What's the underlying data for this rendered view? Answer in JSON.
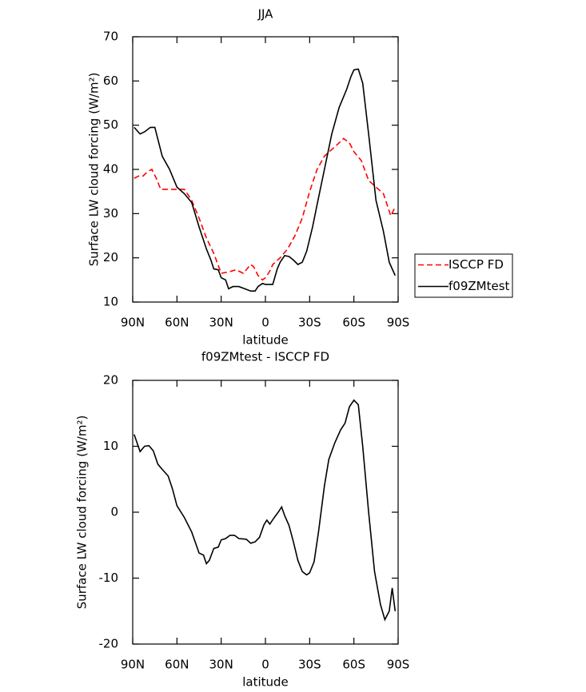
{
  "chart_data": [
    {
      "type": "line",
      "title": "JJA",
      "xlabel": "latitude",
      "ylabel": "Surface LW cloud forcing (W/m²)",
      "xlim": [
        90,
        -90
      ],
      "ylim": [
        10,
        70
      ],
      "xticks": [
        {
          "value": 90,
          "label": "90N"
        },
        {
          "value": 60,
          "label": "60N"
        },
        {
          "value": 30,
          "label": "30N"
        },
        0,
        {
          "value": -30,
          "label": "30S"
        },
        {
          "value": -60,
          "label": "60S"
        },
        {
          "value": -90,
          "label": "90S"
        }
      ],
      "yticks": [
        10,
        20,
        30,
        40,
        50,
        60,
        70
      ],
      "legend": "right",
      "series": [
        {
          "name": "ISCCP FD",
          "color": "#ff0000",
          "dash": "dashed",
          "x": [
            89,
            86,
            83,
            80,
            77,
            74,
            71,
            66,
            60,
            55,
            50,
            45,
            40,
            35,
            30,
            25,
            20,
            15,
            10,
            8,
            5,
            2,
            0,
            -3,
            -5,
            -10,
            -15,
            -20,
            -25,
            -30,
            -35,
            -40,
            -45,
            -50,
            -53,
            -57,
            -60,
            -65,
            -70,
            -75,
            -80,
            -85,
            -88
          ],
          "values": [
            38,
            38.5,
            38.5,
            39.5,
            40,
            38,
            35.5,
            35.5,
            35.5,
            35.5,
            33,
            29,
            24.5,
            21,
            16.5,
            16.8,
            17.3,
            16.5,
            18.5,
            18,
            16,
            15,
            15.5,
            17,
            18.5,
            20,
            22,
            25,
            29,
            35,
            40,
            43,
            44.5,
            46,
            47,
            46,
            44,
            42,
            37.5,
            36,
            34.5,
            29.5,
            31.5
          ]
        },
        {
          "name": "f09ZMtest",
          "color": "#000000",
          "dash": "solid",
          "x": [
            89,
            85,
            82,
            78,
            75,
            70,
            65,
            60,
            55,
            50,
            45,
            40,
            37,
            35,
            32,
            30,
            27,
            25,
            22,
            18,
            14,
            10,
            7,
            5,
            2,
            0,
            -3,
            -5,
            -8,
            -10,
            -13,
            -16,
            -19,
            -22,
            -25,
            -28,
            -32,
            -35,
            -40,
            -45,
            -50,
            -55,
            -58,
            -60,
            -63,
            -66,
            -70,
            -75,
            -80,
            -84,
            -86,
            -88
          ],
          "values": [
            49.5,
            48,
            48.5,
            49.5,
            49.5,
            43,
            40,
            36,
            34.5,
            32.5,
            27,
            22,
            19.5,
            17.5,
            17.3,
            15.5,
            15,
            13,
            13.5,
            13.5,
            13,
            12.5,
            12.5,
            13.5,
            14.2,
            14,
            14,
            14,
            17.5,
            19,
            20.5,
            20.3,
            19.5,
            18.5,
            19,
            21.5,
            27,
            32,
            40,
            48,
            54,
            58,
            61,
            62.5,
            62.7,
            59.5,
            48,
            33,
            26,
            19,
            17.5,
            16
          ]
        }
      ]
    },
    {
      "type": "line",
      "title": "f09ZMtest - ISCCP FD",
      "xlabel": "latitude",
      "ylabel": "Surface LW cloud forcing (W/m²)",
      "xlim": [
        90,
        -90
      ],
      "ylim": [
        -20,
        20
      ],
      "xticks": [
        {
          "value": 90,
          "label": "90N"
        },
        {
          "value": 60,
          "label": "60N"
        },
        {
          "value": 30,
          "label": "30N"
        },
        0,
        {
          "value": -30,
          "label": "30S"
        },
        {
          "value": -60,
          "label": "60S"
        },
        {
          "value": -90,
          "label": "90S"
        }
      ],
      "yticks": [
        -20,
        -10,
        0,
        10,
        20
      ],
      "color": "#000000",
      "x": [
        89,
        85,
        82,
        79,
        76,
        73,
        70,
        66,
        63,
        60,
        55,
        50,
        45,
        42,
        40,
        38,
        35,
        32,
        30,
        27,
        24,
        21,
        18,
        13,
        10,
        7,
        4,
        1,
        -1,
        -3,
        -6,
        -9,
        -11,
        -13,
        -16,
        -19,
        -22,
        -25,
        -28,
        -30,
        -33,
        -36,
        -40,
        -43,
        -47,
        -51,
        -54,
        -57,
        -60,
        -63,
        -66,
        -70,
        -74,
        -78,
        -81,
        -84,
        -86,
        -88
      ],
      "values": [
        11.8,
        9.2,
        10,
        10.1,
        9.3,
        7.3,
        6.5,
        5.5,
        3.5,
        1,
        -0.8,
        -3,
        -6.2,
        -6.5,
        -7.8,
        -7.3,
        -5.5,
        -5.3,
        -4.2,
        -4,
        -3.5,
        -3.5,
        -4,
        -4.1,
        -4.7,
        -4.5,
        -3.8,
        -1.9,
        -1.2,
        -1.8,
        -0.8,
        0.1,
        0.8,
        -0.5,
        -2,
        -4.5,
        -7.3,
        -9,
        -9.5,
        -9.2,
        -7.5,
        -3,
        4,
        8,
        10.5,
        12.5,
        13.5,
        16,
        17,
        16.3,
        10,
        0,
        -9,
        -14,
        -16.3,
        -15,
        -11.5,
        -15
      ]
    }
  ]
}
